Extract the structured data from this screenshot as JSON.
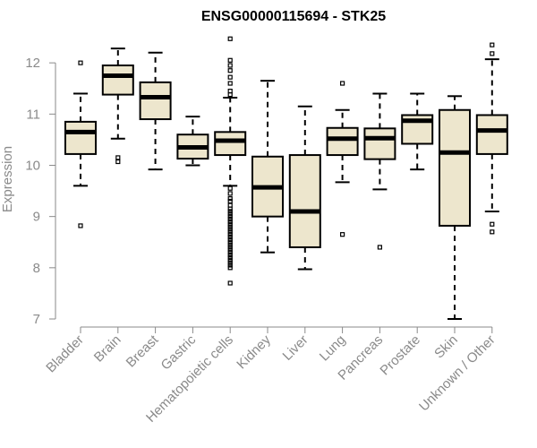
{
  "chart_data": {
    "type": "boxplot",
    "title": "ENSG00000115694 - STK25",
    "ylabel": "Expression",
    "ylim": [
      7,
      12.5
    ],
    "yticks": [
      7,
      8,
      9,
      10,
      11,
      12
    ],
    "box_color": "#ede6cd",
    "categories": [
      "Bladder",
      "Brain",
      "Breast",
      "Gastric",
      "Hematopoietic cells",
      "Kidney",
      "Liver",
      "Lung",
      "Pancreas",
      "Prostate",
      "Skin",
      "Unknown / Other"
    ],
    "boxes": [
      {
        "min": 9.6,
        "q1": 10.22,
        "median": 10.65,
        "q3": 10.85,
        "max": 11.4,
        "outliers": [
          12.0,
          8.82
        ]
      },
      {
        "min": 10.52,
        "q1": 11.38,
        "median": 11.75,
        "q3": 11.95,
        "max": 12.28,
        "outliers": [
          10.15,
          10.07
        ]
      },
      {
        "min": 9.92,
        "q1": 10.9,
        "median": 11.33,
        "q3": 11.62,
        "max": 12.2,
        "outliers": []
      },
      {
        "min": 10.0,
        "q1": 10.13,
        "median": 10.35,
        "q3": 10.6,
        "max": 10.95,
        "outliers": []
      },
      {
        "min": 9.6,
        "q1": 10.2,
        "median": 10.48,
        "q3": 10.65,
        "max": 11.32,
        "outliers": [
          12.47,
          12.05,
          11.95,
          11.85,
          11.72,
          11.6,
          11.45,
          11.38,
          9.55,
          9.45,
          9.35,
          9.3,
          9.22,
          9.15,
          9.1,
          9.05,
          9.0,
          8.95,
          8.9,
          8.85,
          8.8,
          8.75,
          8.7,
          8.65,
          8.6,
          8.55,
          8.5,
          8.45,
          8.4,
          8.35,
          8.3,
          8.25,
          8.2,
          8.15,
          8.1,
          8.05,
          8.0,
          7.7
        ]
      },
      {
        "min": 8.3,
        "q1": 9.0,
        "median": 9.57,
        "q3": 10.17,
        "max": 11.65,
        "outliers": []
      },
      {
        "min": 7.97,
        "q1": 8.4,
        "median": 9.1,
        "q3": 10.2,
        "max": 11.15,
        "outliers": []
      },
      {
        "min": 9.67,
        "q1": 10.2,
        "median": 10.52,
        "q3": 10.73,
        "max": 11.08,
        "outliers": [
          11.6,
          8.65
        ]
      },
      {
        "min": 9.53,
        "q1": 10.12,
        "median": 10.53,
        "q3": 10.72,
        "max": 11.4,
        "outliers": [
          8.4
        ]
      },
      {
        "min": 9.92,
        "q1": 10.42,
        "median": 10.87,
        "q3": 10.98,
        "max": 11.4,
        "outliers": []
      },
      {
        "min": 7.0,
        "q1": 8.82,
        "median": 10.25,
        "q3": 11.08,
        "max": 11.35,
        "outliers": []
      },
      {
        "min": 9.1,
        "q1": 10.22,
        "median": 10.68,
        "q3": 10.98,
        "max": 12.07,
        "outliers": [
          12.35,
          12.18,
          8.85,
          8.7
        ]
      }
    ]
  }
}
